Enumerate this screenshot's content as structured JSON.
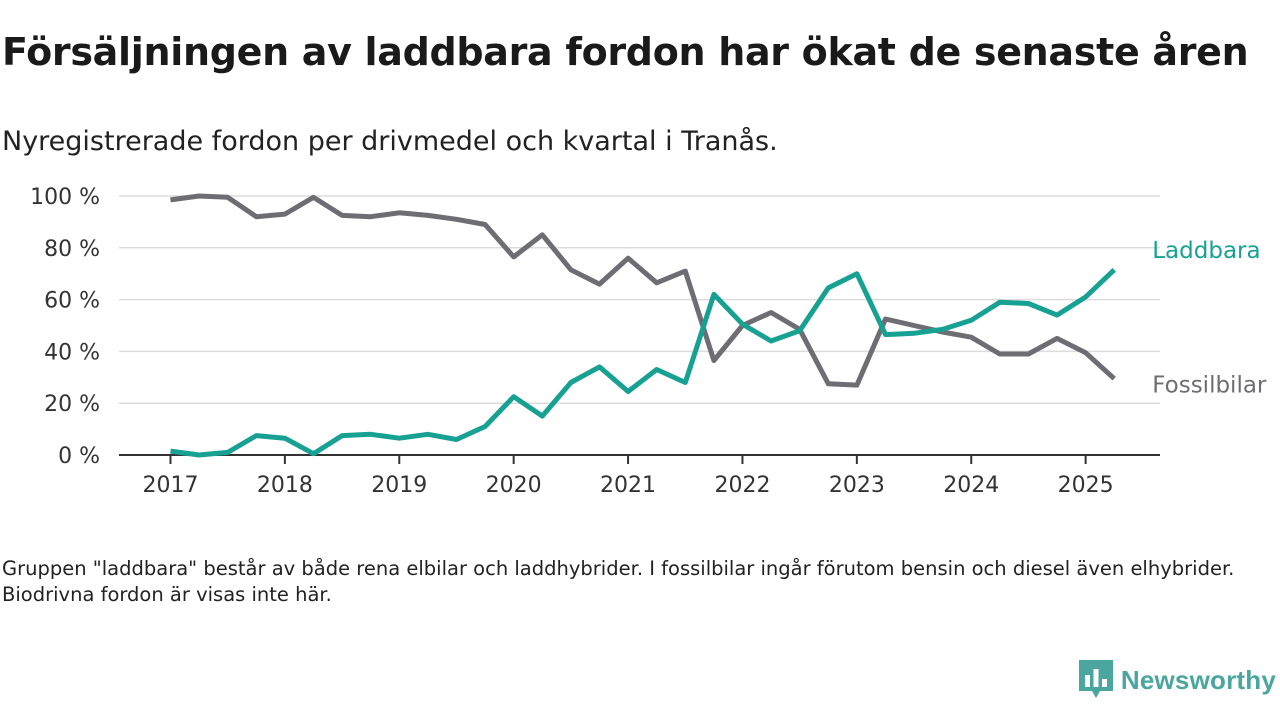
{
  "header": {
    "title": "Försäljningen av laddbara fordon har ökat de senaste åren",
    "subtitle": "Nyregistrerade fordon per drivmedel och kvartal i Tranås."
  },
  "footnote": "Gruppen \"laddbara\" består av både rena elbilar och laddhybrider. I fossilbilar ingår förutom bensin och diesel även elhybrider. Biodrivna fordon är visas inte här.",
  "brand": {
    "name": "Newsworthy",
    "icon": "newsworthy-logo-icon",
    "color": "#4aa69e"
  },
  "chart_data": {
    "type": "line",
    "x": [
      2017.0,
      2017.25,
      2017.5,
      2017.75,
      2018.0,
      2018.25,
      2018.5,
      2018.75,
      2019.0,
      2019.25,
      2019.5,
      2019.75,
      2020.0,
      2020.25,
      2020.5,
      2020.75,
      2021.0,
      2021.25,
      2021.5,
      2021.75,
      2022.0,
      2022.25,
      2022.5,
      2022.75,
      2023.0,
      2023.25,
      2023.5,
      2023.75,
      2024.0,
      2024.25,
      2024.5,
      2024.75,
      2025.0,
      2025.25
    ],
    "series": [
      {
        "name": "Laddbara",
        "color": "#17a193",
        "values": [
          1.5,
          0,
          1,
          7.5,
          6.5,
          0.5,
          7.5,
          8,
          6.5,
          8,
          6,
          11,
          22.5,
          15,
          28,
          34,
          24.5,
          33,
          28,
          62,
          50.5,
          44,
          48,
          64.5,
          70,
          46.5,
          47,
          48.5,
          52,
          59,
          58.5,
          54,
          61,
          71.5
        ]
      },
      {
        "name": "Fossilbilar",
        "color": "#6e6d74",
        "values": [
          98.5,
          100,
          99.5,
          92,
          93,
          99.5,
          92.5,
          92,
          93.5,
          92.5,
          91,
          89,
          76.5,
          85,
          71.5,
          66,
          76,
          66.5,
          71,
          36.5,
          50,
          55,
          48.5,
          27.5,
          27,
          52.5,
          50,
          47.5,
          45.5,
          39,
          39,
          45,
          39.5,
          29.5
        ]
      }
    ],
    "xticks": [
      "2017",
      "2018",
      "2019",
      "2020",
      "2021",
      "2022",
      "2023",
      "2024",
      "2025"
    ],
    "yticks": [
      "0 %",
      "20 %",
      "40 %",
      "60 %",
      "80 %",
      "100 %"
    ],
    "xlim": [
      2016.55,
      2025.65
    ],
    "ylim": [
      0,
      100
    ],
    "grid": true,
    "legend": "direct labels at line ends (right)"
  }
}
